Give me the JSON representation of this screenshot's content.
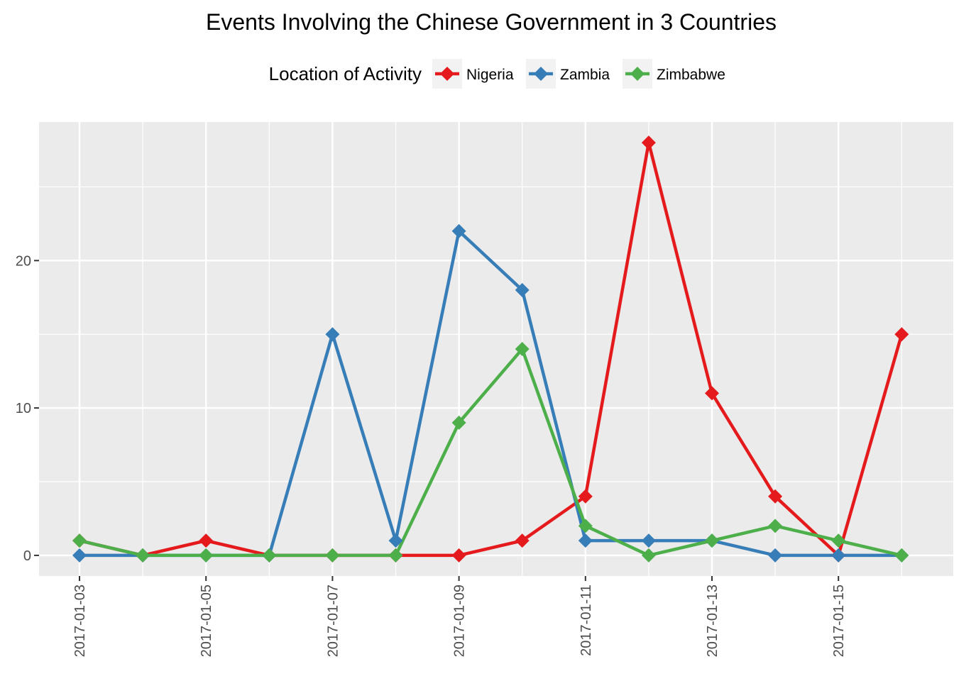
{
  "chart_data": {
    "type": "line",
    "title": "Events Involving the Chinese Government in 3 Countries",
    "xlabel": "",
    "ylabel": "",
    "legend": {
      "title": "Location of Activity",
      "placement": "top"
    },
    "x": [
      "2017-01-03",
      "2017-01-04",
      "2017-01-05",
      "2017-01-06",
      "2017-01-07",
      "2017-01-08",
      "2017-01-09",
      "2017-01-10",
      "2017-01-11",
      "2017-01-12",
      "2017-01-13",
      "2017-01-14",
      "2017-01-15",
      "2017-01-16"
    ],
    "x_ticks": [
      "2017-01-03",
      "2017-01-05",
      "2017-01-07",
      "2017-01-09",
      "2017-01-11",
      "2017-01-13",
      "2017-01-15"
    ],
    "y_ticks": [
      0,
      10,
      20
    ],
    "ylim": [
      -1.4,
      29.4
    ],
    "grid": true,
    "series": [
      {
        "name": "Nigeria",
        "color": "#e41a1c",
        "values": [
          1,
          0,
          1,
          0,
          0,
          0,
          0,
          1,
          4,
          28,
          11,
          4,
          0,
          15
        ]
      },
      {
        "name": "Zambia",
        "color": "#377eb8",
        "values": [
          0,
          0,
          0,
          0,
          15,
          1,
          22,
          18,
          1,
          1,
          1,
          0,
          0,
          0
        ]
      },
      {
        "name": "Zimbabwe",
        "color": "#4daf4a",
        "values": [
          1,
          0,
          0,
          0,
          0,
          0,
          9,
          14,
          2,
          0,
          1,
          2,
          1,
          0
        ]
      }
    ]
  }
}
